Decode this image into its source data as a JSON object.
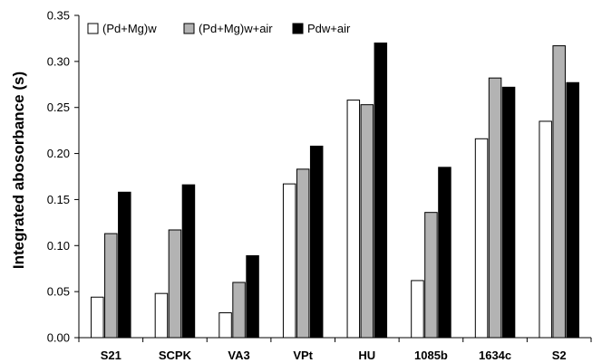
{
  "chart_data": {
    "type": "bar",
    "title": "",
    "xlabel": "",
    "ylabel": "Integrated abosorbance (s)",
    "ylim": [
      0,
      0.35
    ],
    "yticks": [
      "0.00",
      "0.05",
      "0.10",
      "0.15",
      "0.20",
      "0.25",
      "0.30",
      "0.35"
    ],
    "grid": false,
    "legend_position": "top-left",
    "categories": [
      "S21",
      "SCPK",
      "VA3",
      "VPt",
      "HU",
      "1085b",
      "1634c",
      "S2"
    ],
    "series": [
      {
        "name": "(Pd+Mg)w",
        "color": "#ffffff",
        "values": [
          0.044,
          0.048,
          0.027,
          0.167,
          0.258,
          0.062,
          0.216,
          0.235
        ]
      },
      {
        "name": "(Pd+Mg)w+air",
        "color": "#b3b3b3",
        "values": [
          0.113,
          0.117,
          0.06,
          0.183,
          0.253,
          0.136,
          0.282,
          0.317
        ]
      },
      {
        "name": "Pdw+air",
        "color": "#000000",
        "values": [
          0.158,
          0.166,
          0.089,
          0.208,
          0.32,
          0.185,
          0.272,
          0.277
        ]
      }
    ]
  }
}
